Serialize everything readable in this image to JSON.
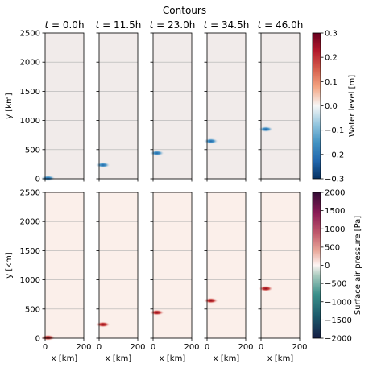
{
  "chart_data": {
    "type": "heatmap",
    "title": "Contours",
    "time_titles": [
      "t = 0.0h",
      "t = 11.5h",
      "t = 23.0h",
      "t = 34.5h",
      "t = 46.0h"
    ],
    "time_values_h": [
      0.0,
      11.5,
      23.0,
      34.5,
      46.0
    ],
    "xlabel": "x [km]",
    "ylabel": "y [km]",
    "xlim": [
      0,
      200
    ],
    "ylim": [
      0,
      2500
    ],
    "x_ticks": [
      "0",
      "200"
    ],
    "y_ticks": [
      "0",
      "500",
      "1000",
      "1500",
      "2000",
      "2500"
    ],
    "grid": "horizontal",
    "feature_y_km": [
      10,
      235,
      440,
      645,
      850
    ],
    "feature_x_km": [
      15,
      20,
      20,
      20,
      25
    ],
    "rows": [
      {
        "name": "water_level",
        "colorbar_label": "Water level [m]",
        "colormap": "RdBu_r",
        "range": [
          -0.3,
          0.3
        ],
        "colorbar_ticks": [
          "0.3",
          "0.2",
          "0.1",
          "0.0",
          "−0.1",
          "−0.2",
          "−0.3"
        ],
        "background_value": 0.02,
        "feature_peak": -0.12
      },
      {
        "name": "surface_air_pressure",
        "colorbar_label": "Surface air pressure [Pa]",
        "colormap": "curl",
        "range": [
          -2000,
          2000
        ],
        "colorbar_ticks": [
          "2000",
          "1500",
          "1000",
          "500",
          "0",
          "−500",
          "−1000",
          "−1500",
          "−2000"
        ],
        "background_value": 150,
        "feature_peak": 1600
      }
    ],
    "colors": {
      "water_bg": "#f1ebea",
      "water_feature": "#2b78b8",
      "pressure_bg": "#fbefea",
      "pressure_feature": "#b5182a",
      "grid": "#b0b0b0"
    }
  }
}
